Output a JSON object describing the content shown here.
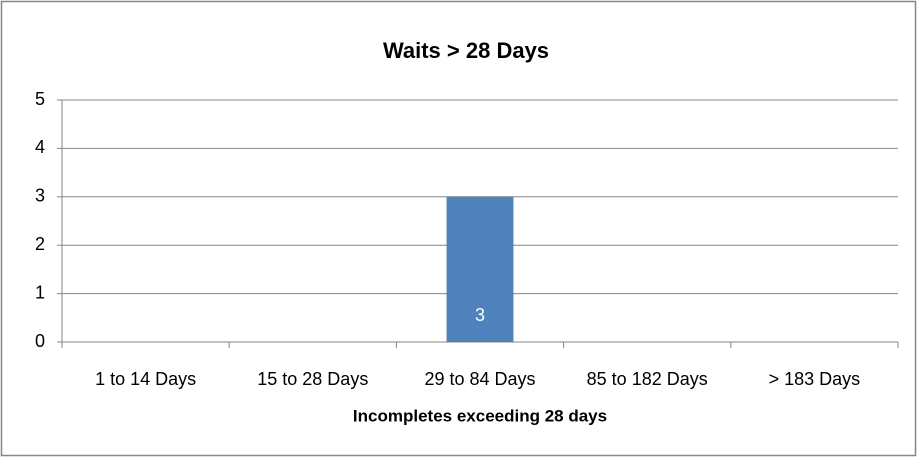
{
  "chart_data": {
    "type": "bar",
    "title": "Waits > 28 Days",
    "x_label": "Incompletes exceeding 28 days",
    "categories": [
      "1 to 14 Days",
      "15 to 28 Days",
      "29 to 84 Days",
      "85 to 182 Days",
      "> 183 Days"
    ],
    "values": [
      0,
      0,
      3,
      0,
      0
    ],
    "color": "#4f81bd",
    "ylim": [
      0,
      5
    ],
    "yticks": [
      0,
      1,
      2,
      3,
      4,
      5
    ],
    "grid": true
  }
}
